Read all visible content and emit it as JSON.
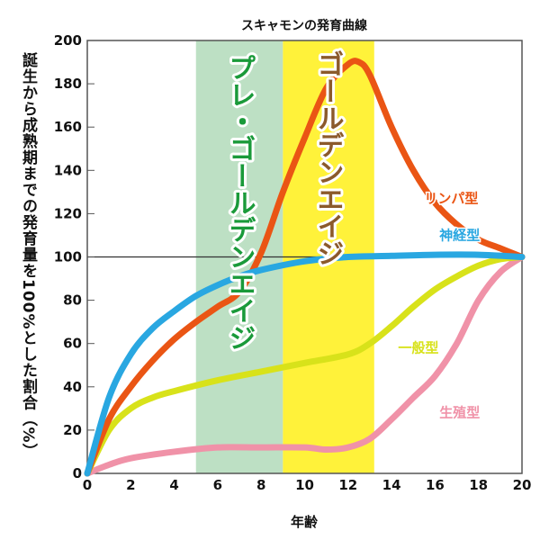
{
  "chart_data": {
    "type": "line",
    "title": "スキャモンの発育曲線",
    "xlabel": "年齢",
    "ylabel": "誕生から成熟期までの発育量を100%とした割合（%）",
    "xlim": [
      0,
      20
    ],
    "ylim": [
      0,
      200
    ],
    "xticks": [
      0,
      2,
      4,
      6,
      8,
      10,
      12,
      14,
      16,
      18,
      20
    ],
    "yticks": [
      0,
      20,
      40,
      60,
      80,
      100,
      120,
      140,
      160,
      180,
      200
    ],
    "reference_line": 100,
    "bands": [
      {
        "label": "プレ・ゴールデンエイジ",
        "from": 5,
        "to": 9,
        "color": "#bde0c4",
        "text_color": "#1a9a3a"
      },
      {
        "label": "ゴールデンエイジ",
        "from": 9,
        "to": 13.2,
        "color": "#fff23a",
        "text_color": "#8b5a2b"
      }
    ],
    "series": [
      {
        "name": "リンパ型",
        "color": "#ea5514",
        "x": [
          0,
          1,
          2,
          3,
          4,
          5,
          6,
          7,
          8,
          9,
          10,
          11,
          12,
          12.5,
          13,
          14,
          15,
          16,
          17,
          18,
          19,
          20
        ],
        "y": [
          0,
          25,
          40,
          52,
          62,
          70,
          77,
          84,
          102,
          130,
          155,
          178,
          189,
          190,
          184,
          160,
          140,
          125,
          115,
          108,
          104,
          100
        ]
      },
      {
        "name": "神経型",
        "color": "#29a7e1",
        "x": [
          0,
          1,
          2,
          3,
          4,
          5,
          6,
          7,
          8,
          10,
          12,
          14,
          16,
          18,
          20
        ],
        "y": [
          0,
          35,
          55,
          67,
          75,
          82,
          87,
          91,
          94,
          98,
          100,
          100.5,
          101,
          101,
          100
        ]
      },
      {
        "name": "一般型",
        "color": "#d8e21a",
        "x": [
          0,
          1,
          2,
          3,
          4,
          6,
          8,
          10,
          12,
          13,
          14,
          15,
          16,
          17,
          18,
          19,
          20
        ],
        "y": [
          0,
          20,
          30,
          35,
          38,
          43,
          47,
          51,
          55,
          60,
          68,
          77,
          85,
          91,
          96,
          99,
          100
        ]
      },
      {
        "name": "生殖型",
        "color": "#f092a8",
        "x": [
          0,
          1,
          2,
          4,
          6,
          8,
          10,
          11,
          12,
          13,
          14,
          15,
          16,
          17,
          18,
          19,
          20
        ],
        "y": [
          0,
          4,
          7,
          10,
          12,
          12,
          12,
          11,
          12,
          16,
          25,
          35,
          45,
          60,
          80,
          93,
          100
        ]
      }
    ]
  }
}
